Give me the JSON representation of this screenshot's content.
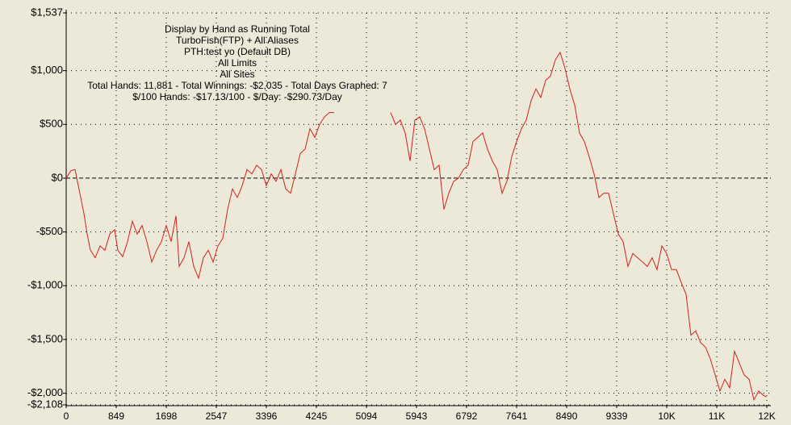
{
  "chart_data": {
    "type": "line",
    "annotations": [
      "Display by Hand as Running Total",
      "TurboFish(FTP) + All Aliases",
      "PTH:test yo (Default DB)",
      "All Limits",
      "All Sites",
      "Total Hands: 11,881 - Total Winnings: -$2,035 - Total Days Graphed: 7",
      "$/100 Hands: -$17.13/100 - $/Day: -$290.73/Day"
    ],
    "x": [
      0,
      82,
      151,
      205,
      246,
      301,
      356,
      411,
      493,
      575,
      657,
      739,
      822,
      876,
      959,
      1041,
      1123,
      1205,
      1287,
      1369,
      1452,
      1534,
      1616,
      1698,
      1780,
      1862,
      1917,
      1999,
      2081,
      2164,
      2246,
      2328,
      2410,
      2492,
      2574,
      2656,
      2739,
      2821,
      2903,
      2985,
      3067,
      3149,
      3231,
      3314,
      3396,
      3478,
      3560,
      3642,
      3724,
      3806,
      3889,
      3971,
      4053,
      4135,
      4217,
      4300,
      4382,
      4464,
      4546,
      5039,
      5505,
      5587,
      5669,
      5751,
      5833,
      5915,
      5998,
      6080,
      6162,
      6244,
      6326,
      6408,
      6490,
      6573,
      6655,
      6737,
      6819,
      6901,
      6983,
      7066,
      7148,
      7230,
      7312,
      7394,
      7476,
      7559,
      7641,
      7723,
      7805,
      7887,
      7969,
      8051,
      8134,
      8216,
      8298,
      8380,
      8462,
      8544,
      8627,
      8709,
      8791,
      8873,
      8955,
      9037,
      9120,
      9202,
      9284,
      9366,
      9448,
      9531,
      9613,
      9695,
      9777,
      9859,
      9941,
      10023,
      10106,
      10188,
      10270,
      10352,
      10434,
      10516,
      10599,
      10681,
      10763,
      10845,
      10927,
      11009,
      11092,
      11174,
      11256,
      11338,
      11420,
      11502,
      11585,
      11667,
      11749,
      11831,
      11881
    ],
    "series": [
      {
        "color": "#d42020",
        "values": [
          0,
          70,
          80,
          -70,
          -180,
          -330,
          -520,
          -670,
          -740,
          -630,
          -670,
          -520,
          -480,
          -670,
          -730,
          -590,
          -400,
          -520,
          -440,
          -590,
          -780,
          -670,
          -590,
          -440,
          -590,
          -350,
          -820,
          -740,
          -590,
          -820,
          -930,
          -740,
          -670,
          -780,
          -630,
          -560,
          -290,
          -100,
          -180,
          -70,
          80,
          40,
          120,
          80,
          -70,
          40,
          -30,
          80,
          -100,
          -140,
          40,
          230,
          270,
          460,
          380,
          500,
          570,
          610,
          610,
          null,
          610,
          500,
          540,
          420,
          160,
          540,
          570,
          460,
          270,
          80,
          120,
          -290,
          -140,
          -30,
          0,
          80,
          120,
          340,
          380,
          420,
          270,
          160,
          80,
          -140,
          -30,
          200,
          340,
          460,
          540,
          720,
          830,
          750,
          910,
          950,
          1100,
          1170,
          1020,
          830,
          680,
          420,
          340,
          200,
          40,
          -180,
          -140,
          -140,
          -330,
          -520,
          -590,
          -820,
          -700,
          -740,
          -780,
          -820,
          -740,
          -850,
          -630,
          -700,
          -850,
          -850,
          -970,
          -1080,
          -1460,
          -1420,
          -1530,
          -1570,
          -1680,
          -1830,
          -1980,
          -1870,
          -1950,
          -1610,
          -1720,
          -1830,
          -1870,
          -2060,
          -1980,
          -2020,
          -2035
        ]
      }
    ],
    "xlim": [
      0,
      11954
    ],
    "ylim": [
      -2108,
      1537
    ],
    "xticks": [
      0,
      849,
      1698,
      2547,
      3396,
      4245,
      5094,
      5943,
      6792,
      7641,
      8490,
      9339,
      {
        "value": 10188,
        "label": "10K"
      },
      {
        "value": 11037,
        "label": "11K"
      },
      {
        "value": 11886,
        "label": "12K"
      }
    ],
    "yticks": [
      {
        "value": 1537,
        "label": "$1,537"
      },
      {
        "value": 1000,
        "label": "$1,000"
      },
      {
        "value": 500,
        "label": "$500"
      },
      {
        "value": 0,
        "label": "$0"
      },
      {
        "value": -500,
        "label": "-$500"
      },
      {
        "value": -1000,
        "label": "-$1,000"
      },
      {
        "value": -1500,
        "label": "-$1,500"
      },
      {
        "value": -2000,
        "label": "-$2,000"
      },
      {
        "value": -2108,
        "label": "-$2,108"
      }
    ],
    "grid": true
  }
}
